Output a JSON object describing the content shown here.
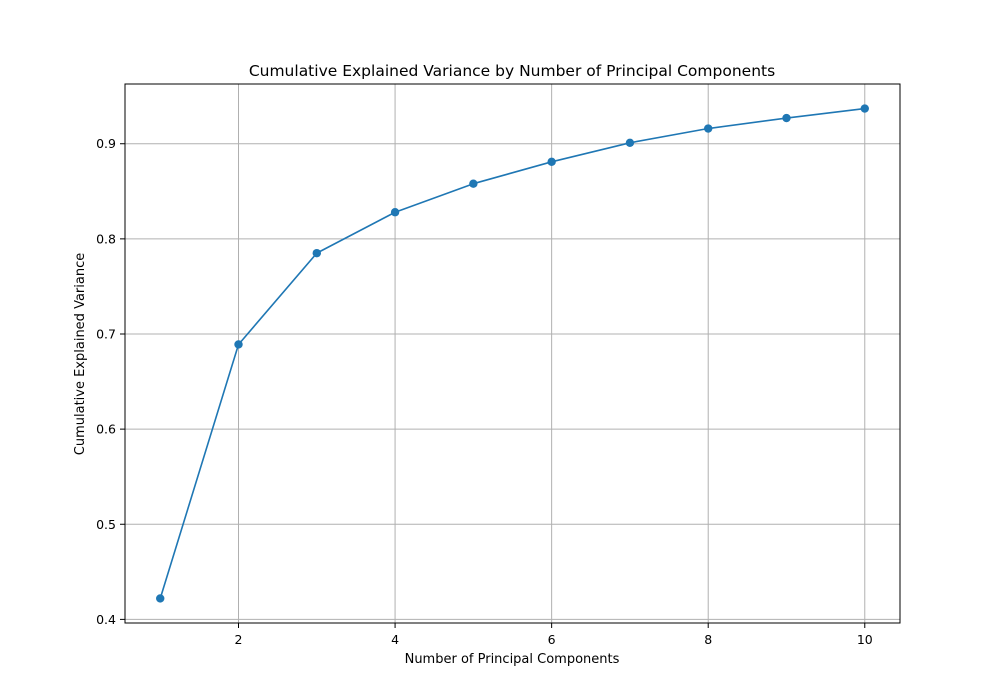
{
  "chart_data": {
    "type": "line",
    "title": "Cumulative Explained Variance by Number of Principal Components",
    "xlabel": "Number of Principal Components",
    "ylabel": "Cumulative Explained Variance",
    "x": [
      1,
      2,
      3,
      4,
      5,
      6,
      7,
      8,
      9,
      10
    ],
    "series": [
      {
        "values": [
          0.422,
          0.689,
          0.785,
          0.828,
          0.858,
          0.881,
          0.901,
          0.916,
          0.927,
          0.937
        ],
        "color": "#1f77b4",
        "marker": "circle"
      }
    ],
    "xlim": [
      0.55,
      10.45
    ],
    "ylim": [
      0.3962,
      0.9628
    ],
    "xticks": [
      2,
      4,
      6,
      8,
      10
    ],
    "yticks": [
      0.4,
      0.5,
      0.6,
      0.7,
      0.8,
      0.9
    ],
    "xtick_labels": [
      "2",
      "4",
      "6",
      "8",
      "10"
    ],
    "ytick_labels": [
      "0.4",
      "0.5",
      "0.6",
      "0.7",
      "0.8",
      "0.9"
    ],
    "grid": true,
    "legend": "none"
  }
}
